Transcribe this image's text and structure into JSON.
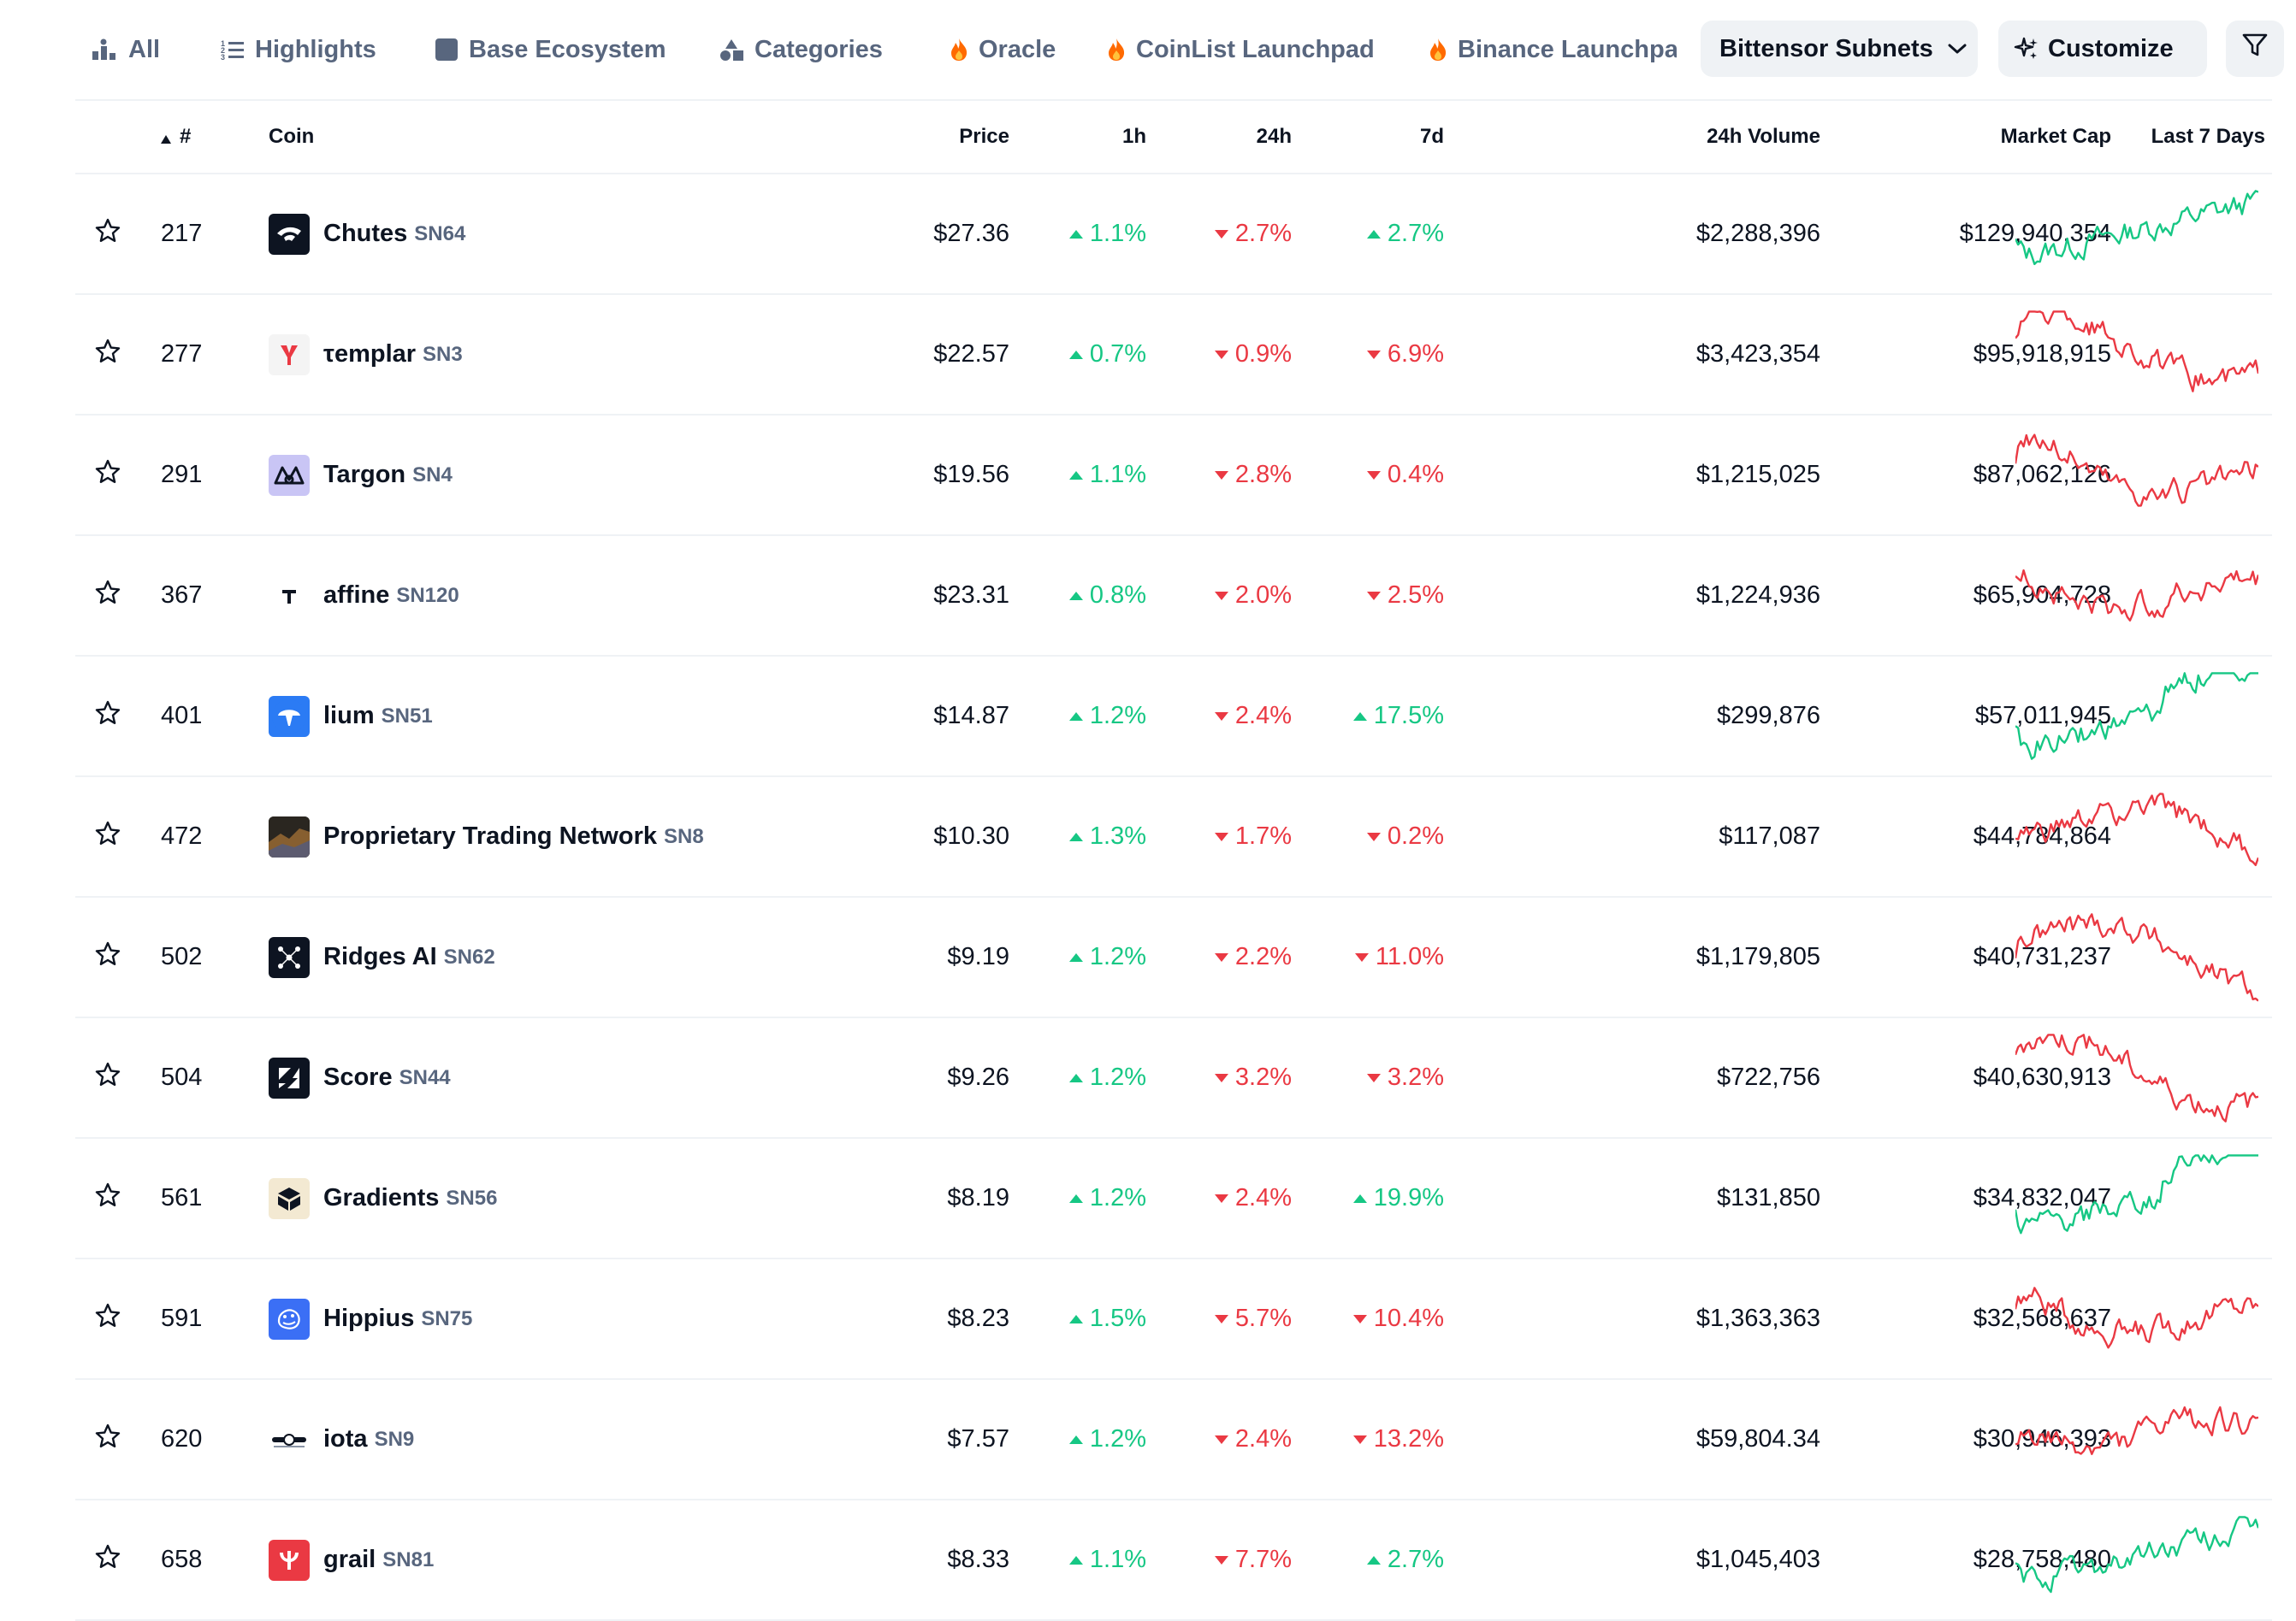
{
  "nav": {
    "tabs": [
      {
        "label": "All",
        "icon": "bar-chart-icon"
      },
      {
        "label": "Highlights",
        "icon": "list-icon"
      },
      {
        "label": "Base Ecosystem",
        "icon": "base-square-icon"
      },
      {
        "label": "Categories",
        "icon": "shapes-icon"
      },
      {
        "label": "Oracle",
        "icon": "fire-icon"
      },
      {
        "label": "CoinList Launchpad",
        "icon": "fire-icon"
      },
      {
        "label": "Binance Launchpad",
        "icon": "fire-icon"
      }
    ],
    "selected_dropdown": "Bittensor Subnets",
    "customize_label": "Customize",
    "filter_icon": "filter-icon"
  },
  "table": {
    "headers": {
      "rank": "#",
      "coin": "Coin",
      "price": "Price",
      "h1": "1h",
      "h24": "24h",
      "d7": "7d",
      "volume": "24h Volume",
      "mcap": "Market Cap",
      "chart": "Last 7 Days"
    },
    "sort_icon": "sort-up-icon",
    "rows": [
      {
        "rank": "217",
        "name": "Chutes",
        "symbol": "SN64",
        "price": "$27.36",
        "h1": "1.1%",
        "h1_dir": "up",
        "h24": "2.7%",
        "h24_dir": "down",
        "d7": "2.7%",
        "d7_dir": "up",
        "volume": "$2,288,396",
        "mcap": "$129,940,354",
        "logo": {
          "icon": "chutes-logo-icon",
          "bg": "#0d1421",
          "fg": "#ffffff"
        },
        "trend": "up"
      },
      {
        "rank": "277",
        "name": "τemplar",
        "symbol": "SN3",
        "price": "$22.57",
        "h1": "0.7%",
        "h1_dir": "up",
        "h24": "0.9%",
        "h24_dir": "down",
        "d7": "6.9%",
        "d7_dir": "down",
        "volume": "$3,423,354",
        "mcap": "$95,918,915",
        "logo": {
          "icon": "templar-logo-icon",
          "bg": "#f4f4f4",
          "fg": "#ea3943"
        },
        "trend": "down"
      },
      {
        "rank": "291",
        "name": "Targon",
        "symbol": "SN4",
        "price": "$19.56",
        "h1": "1.1%",
        "h1_dir": "up",
        "h24": "2.8%",
        "h24_dir": "down",
        "d7": "0.4%",
        "d7_dir": "down",
        "volume": "$1,215,025",
        "mcap": "$87,062,126",
        "logo": {
          "icon": "targon-logo-icon",
          "bg": "#c9c5f5",
          "fg": "#0d1421"
        },
        "trend": "down"
      },
      {
        "rank": "367",
        "name": "affine",
        "symbol": "SN120",
        "price": "$23.31",
        "h1": "0.8%",
        "h1_dir": "up",
        "h24": "2.0%",
        "h24_dir": "down",
        "d7": "2.5%",
        "d7_dir": "down",
        "volume": "$1,224,936",
        "mcap": "$65,904,728",
        "logo": {
          "icon": "affine-logo-icon",
          "bg": "#ffffff",
          "fg": "#0d1421"
        },
        "trend": "down"
      },
      {
        "rank": "401",
        "name": "lium",
        "symbol": "SN51",
        "price": "$14.87",
        "h1": "1.2%",
        "h1_dir": "up",
        "h24": "2.4%",
        "h24_dir": "down",
        "d7": "17.5%",
        "d7_dir": "up",
        "volume": "$299,876",
        "mcap": "$57,011,945",
        "logo": {
          "icon": "lium-logo-icon",
          "bg": "#2b7bf4",
          "fg": "#ffffff"
        },
        "trend": "up"
      },
      {
        "rank": "472",
        "name": "Proprietary Trading Network",
        "symbol": "SN8",
        "price": "$10.30",
        "h1": "1.3%",
        "h1_dir": "up",
        "h24": "1.7%",
        "h24_dir": "down",
        "d7": "0.2%",
        "d7_dir": "down",
        "volume": "$117,087",
        "mcap": "$44,784,864",
        "logo": {
          "icon": "ptn-logo-icon",
          "bg": "#2a2620",
          "fg": "#c7863c"
        },
        "trend": "down"
      },
      {
        "rank": "502",
        "name": "Ridges AI",
        "symbol": "SN62",
        "price": "$9.19",
        "h1": "1.2%",
        "h1_dir": "up",
        "h24": "2.2%",
        "h24_dir": "down",
        "d7": "11.0%",
        "d7_dir": "down",
        "volume": "$1,179,805",
        "mcap": "$40,731,237",
        "logo": {
          "icon": "ridges-logo-icon",
          "bg": "#0d1421",
          "fg": "#ffffff"
        },
        "trend": "down"
      },
      {
        "rank": "504",
        "name": "Score",
        "symbol": "SN44",
        "price": "$9.26",
        "h1": "1.2%",
        "h1_dir": "up",
        "h24": "3.2%",
        "h24_dir": "down",
        "d7": "3.2%",
        "d7_dir": "down",
        "volume": "$722,756",
        "mcap": "$40,630,913",
        "logo": {
          "icon": "score-logo-icon",
          "bg": "#0d1421",
          "fg": "#ffffff"
        },
        "trend": "down"
      },
      {
        "rank": "561",
        "name": "Gradients",
        "symbol": "SN56",
        "price": "$8.19",
        "h1": "1.2%",
        "h1_dir": "up",
        "h24": "2.4%",
        "h24_dir": "down",
        "d7": "19.9%",
        "d7_dir": "up",
        "volume": "$131,850",
        "mcap": "$34,832,047",
        "logo": {
          "icon": "gradients-logo-icon",
          "bg": "#f3e9d2",
          "fg": "#0d1421"
        },
        "trend": "up"
      },
      {
        "rank": "591",
        "name": "Hippius",
        "symbol": "SN75",
        "price": "$8.23",
        "h1": "1.5%",
        "h1_dir": "up",
        "h24": "5.7%",
        "h24_dir": "down",
        "d7": "10.4%",
        "d7_dir": "down",
        "volume": "$1,363,363",
        "mcap": "$32,568,637",
        "logo": {
          "icon": "hippius-logo-icon",
          "bg": "#3b6ff5",
          "fg": "#ffffff"
        },
        "trend": "down"
      },
      {
        "rank": "620",
        "name": "iota",
        "symbol": "SN9",
        "price": "$7.57",
        "h1": "1.2%",
        "h1_dir": "up",
        "h24": "2.4%",
        "h24_dir": "down",
        "d7": "13.2%",
        "d7_dir": "down",
        "volume": "$59,804.34",
        "mcap": "$30,946,393",
        "logo": {
          "icon": "iota-logo-icon",
          "bg": "#ffffff",
          "fg": "#0d1421"
        },
        "trend": "down"
      },
      {
        "rank": "658",
        "name": "grail",
        "symbol": "SN81",
        "price": "$8.33",
        "h1": "1.1%",
        "h1_dir": "up",
        "h24": "7.7%",
        "h24_dir": "down",
        "d7": "2.7%",
        "d7_dir": "up",
        "volume": "$1,045,403",
        "mcap": "$28,758,480",
        "logo": {
          "icon": "grail-logo-icon",
          "bg": "#ea3943",
          "fg": "#ffffff"
        },
        "trend": "up"
      }
    ]
  },
  "colors": {
    "up": "#16c784",
    "down": "#ea3943",
    "text": "#0d1421",
    "muted": "#58667e",
    "divider": "#eff2f5"
  }
}
